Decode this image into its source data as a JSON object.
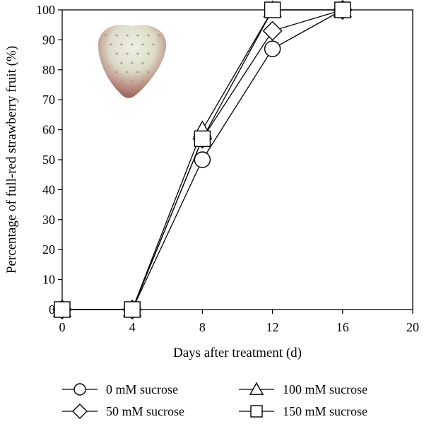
{
  "chart_data": {
    "type": "line",
    "xlabel": "Days after treatment (d)",
    "ylabel": "Percentage of full-red strawberry fruit (%)",
    "xlim": [
      0,
      20
    ],
    "ylim": [
      0,
      100
    ],
    "xticks": [
      "0",
      "4",
      "8",
      "12",
      "16",
      "20"
    ],
    "yticks": [
      "0",
      "10",
      "20",
      "30",
      "40",
      "50",
      "60",
      "70",
      "80",
      "90",
      "100"
    ],
    "x": [
      0,
      4,
      8,
      12,
      16
    ],
    "grid": false,
    "legend_position": "bottom",
    "series": [
      {
        "name": "0 mM sucrose",
        "marker": "circle",
        "values": [
          0,
          0,
          50,
          87,
          100
        ]
      },
      {
        "name": "50 mM sucrose",
        "marker": "diamond",
        "values": [
          0,
          0,
          57,
          93,
          100
        ]
      },
      {
        "name": "100 mM sucrose",
        "marker": "triangle",
        "values": [
          0,
          0,
          60,
          100,
          100
        ]
      },
      {
        "name": "150 mM sucrose",
        "marker": "square",
        "values": [
          0,
          0,
          57,
          100,
          100
        ]
      }
    ],
    "inset_image": "strawberry-fruit-photo"
  }
}
